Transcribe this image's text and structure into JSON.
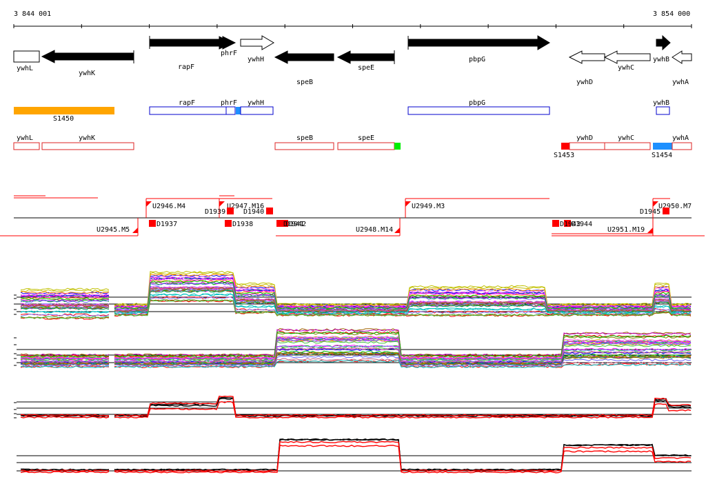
{
  "ruler": {
    "start_label": "3 844 001",
    "end_label": "3 854 000"
  },
  "genes": [
    {
      "label": "ywhL",
      "filled": false,
      "dir": "left"
    },
    {
      "label": "ywhK",
      "filled": true,
      "dir": "left"
    },
    {
      "label": "rapF",
      "filled": true,
      "dir": "right"
    },
    {
      "label": "phrF",
      "filled": true,
      "dir": "right"
    },
    {
      "label": "ywhH",
      "filled": false,
      "dir": "right"
    },
    {
      "label": "speB",
      "filled": true,
      "dir": "left"
    },
    {
      "label": "speE",
      "filled": true,
      "dir": "left"
    },
    {
      "label": "pbpG",
      "filled": true,
      "dir": "right"
    },
    {
      "label": "ywhD",
      "filled": false,
      "dir": "left"
    },
    {
      "label": "ywhC",
      "filled": false,
      "dir": "left"
    },
    {
      "label": "ywhB",
      "filled": true,
      "dir": "right"
    },
    {
      "label": "ywhA",
      "filled": false,
      "dir": "left"
    }
  ],
  "plus_features": [
    {
      "label": "S1450",
      "color": "#ffa500"
    },
    {
      "label": "rapF",
      "color": "#0000cc"
    },
    {
      "label": "phrF",
      "color": "#0000cc"
    },
    {
      "label": "ywhH",
      "color": "#0000cc"
    },
    {
      "label": "pbpG",
      "color": "#0000cc"
    },
    {
      "label": "ywhB",
      "color": "#0000cc"
    }
  ],
  "minus_features": [
    {
      "label": "ywhL",
      "color": "#dd2222"
    },
    {
      "label": "ywhK",
      "color": "#dd2222"
    },
    {
      "label": "speB",
      "color": "#dd2222"
    },
    {
      "label": "speE",
      "color": "#dd2222"
    },
    {
      "label": "S1453",
      "color": "#ff0000"
    },
    {
      "label": "ywhD",
      "color": "#dd2222"
    },
    {
      "label": "ywhC",
      "color": "#dd2222"
    },
    {
      "label": "S1454",
      "color": "#1e90ff"
    },
    {
      "label": "ywhA",
      "color": "#dd2222"
    }
  ],
  "segment_labels": [
    "U2946.M4",
    "U2947.M16",
    "U2949.M3",
    "U2950.M7",
    "U2945.M5",
    "U2948.M14",
    "U2951.M19"
  ],
  "site_labels": [
    "D1939",
    "D1940",
    "D1945",
    "D1937",
    "D1938",
    "D1941",
    "D1942",
    "D1943",
    "D1944"
  ],
  "colors": {
    "arrow": "#000000",
    "outline_blue": "#0000cc",
    "outline_red": "#dd2222",
    "segment_red": "#ff0000",
    "green_mark": "#00ee00"
  }
}
